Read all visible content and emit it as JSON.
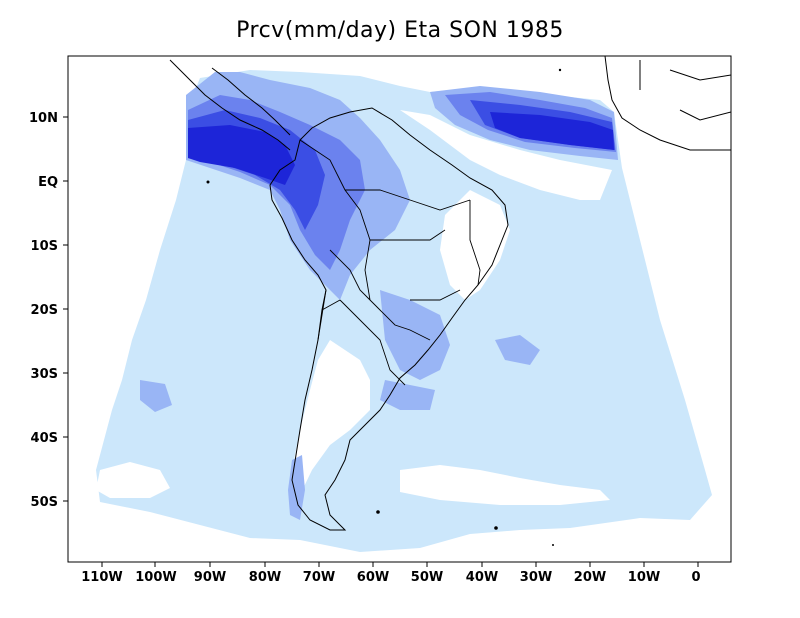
{
  "title": "Prcv(mm/day) Eta SON 1985",
  "x_ticks": [
    "110W",
    "100W",
    "90W",
    "80W",
    "70W",
    "60W",
    "50W",
    "40W",
    "30W",
    "20W",
    "10W",
    "0"
  ],
  "y_ticks": [
    "10N",
    "EQ",
    "10S",
    "20S",
    "30S",
    "40S",
    "50S"
  ],
  "colors": {
    "level1": "#cce7fb",
    "level2": "#99b5f5",
    "level3": "#6b82ee",
    "level4": "#3b4ee4",
    "level5": "#1d25d8",
    "coast": "#000000"
  },
  "icons": [
    "political-boundaries",
    "coastline"
  ]
}
